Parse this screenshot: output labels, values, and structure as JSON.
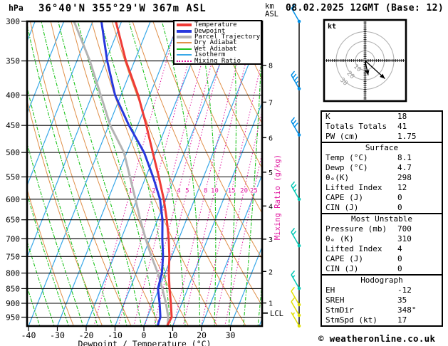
{
  "header": {
    "pressure_unit_label": "hPa",
    "title": "36°40'N 355°29'W 367m ASL",
    "datetime": "08.02.2025 12GMT (Base: 12)",
    "altitude_unit_line1": "km",
    "altitude_unit_line2": "ASL"
  },
  "legend": {
    "items": [
      {
        "label": "Temperature",
        "color": "#ef3b36",
        "style": "thick"
      },
      {
        "label": "Dewpoint",
        "color": "#2838dd",
        "style": "thick"
      },
      {
        "label": "Parcel Trajectory",
        "color": "#b4b4b4",
        "style": "thick"
      },
      {
        "label": "Dry Adiabat",
        "color": "#e0904a",
        "style": "thin"
      },
      {
        "label": "Wet Adiabat",
        "color": "#1ec41e",
        "style": "thin"
      },
      {
        "label": "Isotherm",
        "color": "#38a8e8",
        "style": "thin"
      },
      {
        "label": "Mixing Ratio",
        "color": "#e018a0",
        "style": "dotted"
      }
    ]
  },
  "axes": {
    "pressure_ticks_hpa": [
      300,
      350,
      400,
      450,
      500,
      550,
      600,
      650,
      700,
      750,
      800,
      850,
      900,
      950
    ],
    "temp_ticks_c": [
      -40,
      -30,
      -20,
      -10,
      0,
      10,
      20,
      30
    ],
    "xlabel": "Dewpoint / Temperature (°C)",
    "mixing_ratio_axis_label": "Mixing Ratio (g/kg)",
    "km_ticks": [
      {
        "km": "1",
        "hpa": 899
      },
      {
        "km": "2",
        "hpa": 795
      },
      {
        "km": "3",
        "hpa": 701
      },
      {
        "km": "4",
        "hpa": 616
      },
      {
        "km": "5",
        "hpa": 540
      },
      {
        "km": "6",
        "hpa": 472
      },
      {
        "km": "7",
        "hpa": 411
      },
      {
        "km": "8",
        "hpa": 356
      }
    ],
    "lcl": {
      "label": "LCL",
      "hpa": 935
    }
  },
  "chart_data": {
    "type": "skewt-log-p-sounding",
    "pressure_range_hpa": [
      300,
      983
    ],
    "temp_axis_range_c": [
      -40,
      40
    ],
    "mixing_ratio_labels_gkg": [
      1,
      2,
      3,
      4,
      5,
      8,
      10,
      15,
      20,
      25
    ],
    "mixing_ratio_label_pressure_hpa": 580,
    "series": [
      {
        "name": "Temperature",
        "color": "#ef3b36",
        "points_p_t": [
          [
            300,
            -52
          ],
          [
            350,
            -43
          ],
          [
            400,
            -34
          ],
          [
            450,
            -27
          ],
          [
            500,
            -21
          ],
          [
            550,
            -15.5
          ],
          [
            600,
            -10.7
          ],
          [
            650,
            -6.8
          ],
          [
            700,
            -3.5
          ],
          [
            750,
            -0.8
          ],
          [
            800,
            1.3
          ],
          [
            850,
            3.7
          ],
          [
            900,
            6.2
          ],
          [
            950,
            8.4
          ],
          [
            980,
            8.1
          ]
        ]
      },
      {
        "name": "Dewpoint",
        "color": "#2838dd",
        "points_p_t": [
          [
            300,
            -57
          ],
          [
            350,
            -49.5
          ],
          [
            400,
            -42
          ],
          [
            450,
            -33
          ],
          [
            500,
            -24
          ],
          [
            550,
            -17.5
          ],
          [
            600,
            -12
          ],
          [
            650,
            -8.3
          ],
          [
            700,
            -5.7
          ],
          [
            750,
            -3
          ],
          [
            800,
            -1.1
          ],
          [
            850,
            -0.3
          ],
          [
            900,
            2.3
          ],
          [
            950,
            4.5
          ],
          [
            980,
            4.7
          ]
        ]
      },
      {
        "name": "Parcel Trajectory",
        "color": "#b4b4b4",
        "points_p_t": [
          [
            300,
            -66.5
          ],
          [
            350,
            -55.5
          ],
          [
            400,
            -47
          ],
          [
            450,
            -39.5
          ],
          [
            500,
            -31
          ],
          [
            550,
            -25.5
          ],
          [
            600,
            -20.5
          ],
          [
            650,
            -16
          ],
          [
            700,
            -11.5
          ],
          [
            750,
            -7
          ],
          [
            800,
            -2.5
          ],
          [
            850,
            1.2
          ],
          [
            900,
            4.5
          ],
          [
            950,
            7.2
          ],
          [
            980,
            8.1
          ]
        ]
      }
    ],
    "wind_barbs": [
      {
        "hpa": 300,
        "speed_kt": 50,
        "color": "#0090e8"
      },
      {
        "hpa": 390,
        "speed_kt": 35,
        "color": "#0090e8"
      },
      {
        "hpa": 467,
        "speed_kt": 30,
        "color": "#0090e8"
      },
      {
        "hpa": 600,
        "speed_kt": 25,
        "color": "#00c8b4"
      },
      {
        "hpa": 719,
        "speed_kt": 20,
        "color": "#00c8b4"
      },
      {
        "hpa": 849,
        "speed_kt": 15,
        "color": "#00c8b4"
      },
      {
        "hpa": 905,
        "speed_kt": 10,
        "color": "#e0e000"
      },
      {
        "hpa": 943,
        "speed_kt": 10,
        "color": "#e0e000"
      },
      {
        "hpa": 983,
        "speed_kt": 5,
        "color": "#e0e000"
      }
    ]
  },
  "hodograph": {
    "unit_label": "kt",
    "ring_radii_kt": [
      10,
      20,
      30
    ],
    "ring_labels": [
      "10",
      "20",
      "30"
    ],
    "vectors_u_v_kt": [
      [
        3.3,
        -15.4
      ],
      [
        20.7,
        -18.9
      ]
    ]
  },
  "stats": {
    "boxes": [
      {
        "title": "",
        "rows": [
          {
            "label": "K",
            "value": "18"
          },
          {
            "label": "Totals Totals",
            "value": "41"
          },
          {
            "label": "PW (cm)",
            "value": "1.75"
          }
        ]
      },
      {
        "title": "Surface",
        "rows": [
          {
            "label": "Temp (°C)",
            "value": "8.1"
          },
          {
            "label": "Dewp (°C)",
            "value": "4.7"
          },
          {
            "label": "θₑ(K)",
            "value": "298"
          },
          {
            "label": "Lifted Index",
            "value": "12"
          },
          {
            "label": "CAPE (J)",
            "value": "0"
          },
          {
            "label": "CIN (J)",
            "value": "0"
          }
        ]
      },
      {
        "title": "Most Unstable",
        "rows": [
          {
            "label": "Pressure (mb)",
            "value": "700"
          },
          {
            "label": "θₑ (K)",
            "value": "310"
          },
          {
            "label": "Lifted Index",
            "value": "4"
          },
          {
            "label": "CAPE (J)",
            "value": "0"
          },
          {
            "label": "CIN (J)",
            "value": "0"
          }
        ]
      },
      {
        "title": "Hodograph",
        "rows": [
          {
            "label": "EH",
            "value": "-12"
          },
          {
            "label": "SREH",
            "value": "35"
          },
          {
            "label": "StmDir",
            "value": "348°"
          },
          {
            "label": "StmSpd (kt)",
            "value": "17"
          }
        ]
      }
    ]
  },
  "footer": {
    "credit": "© weatheronline.co.uk"
  }
}
